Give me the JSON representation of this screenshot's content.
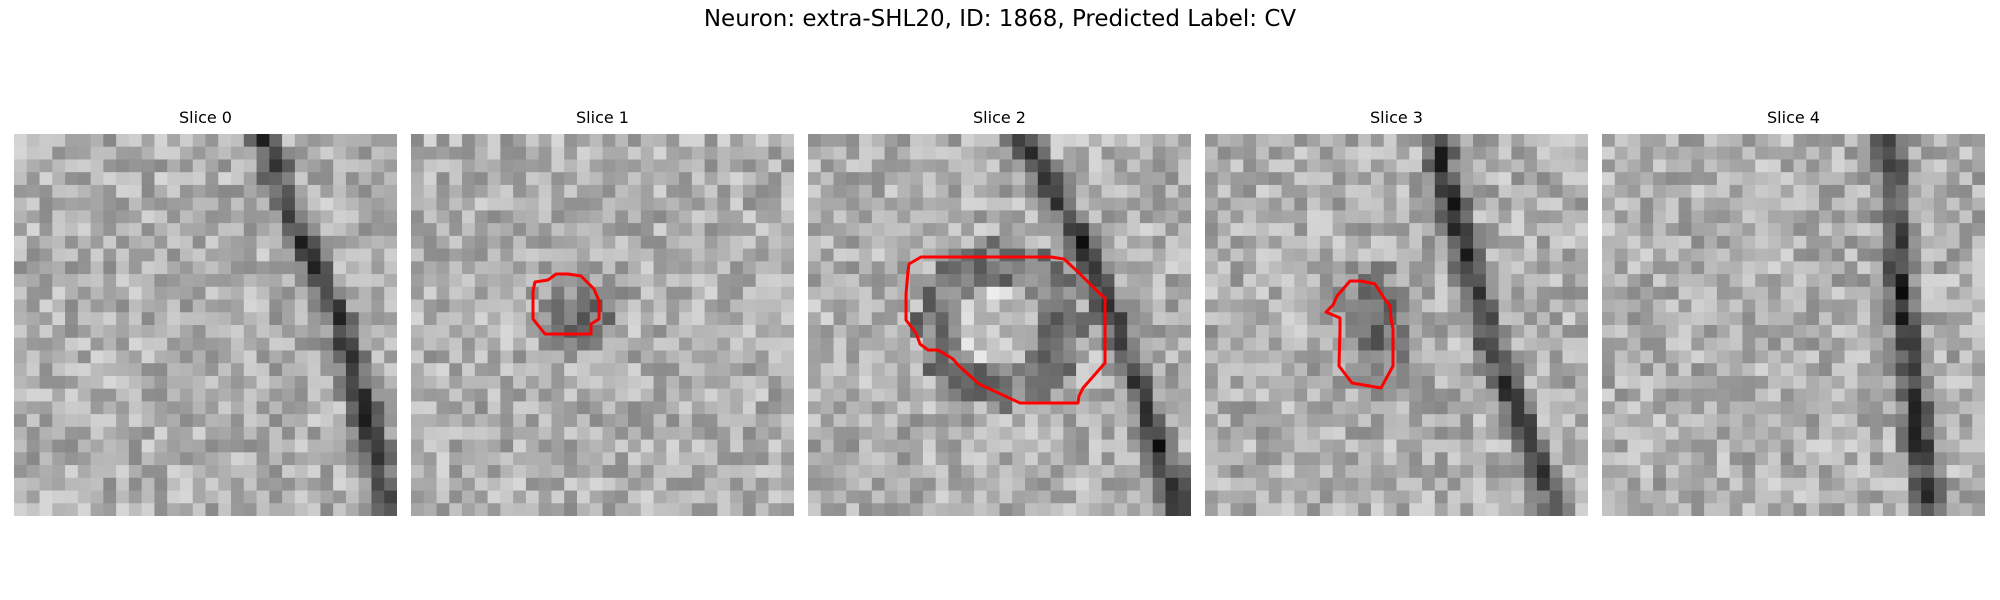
{
  "title": "Neuron: extra-SHL20, ID: 1868, Predicted Label: CV",
  "colors": {
    "outline": "#ff0000",
    "background": "#ffffff"
  },
  "slices": [
    {
      "label": "Slice 0",
      "has_outline": false,
      "dark_band": [
        [
          0.65,
          0.0
        ],
        [
          0.72,
          0.2
        ],
        [
          0.86,
          0.5
        ],
        [
          0.98,
          1.0
        ]
      ],
      "blob": null
    },
    {
      "label": "Slice 1",
      "has_outline": true,
      "dark_band": null,
      "blob": [
        0.45,
        0.48,
        0.13,
        0.13
      ]
    },
    {
      "label": "Slice 2",
      "has_outline": true,
      "dark_band": [
        [
          0.55,
          0.0
        ],
        [
          0.7,
          0.25
        ],
        [
          0.82,
          0.55
        ],
        [
          0.98,
          1.0
        ]
      ],
      "blob": [
        0.5,
        0.5,
        0.22,
        0.22
      ]
    },
    {
      "label": "Slice 3",
      "has_outline": true,
      "dark_band": [
        [
          0.6,
          0.0
        ],
        [
          0.66,
          0.25
        ],
        [
          0.76,
          0.6
        ],
        [
          0.93,
          1.0
        ]
      ],
      "blob": [
        0.45,
        0.5,
        0.14,
        0.2
      ]
    },
    {
      "label": "Slice 4",
      "has_outline": false,
      "dark_band": [
        [
          0.75,
          0.0
        ],
        [
          0.78,
          0.4
        ],
        [
          0.82,
          0.75
        ],
        [
          0.86,
          1.0
        ]
      ],
      "blob": null
    }
  ]
}
